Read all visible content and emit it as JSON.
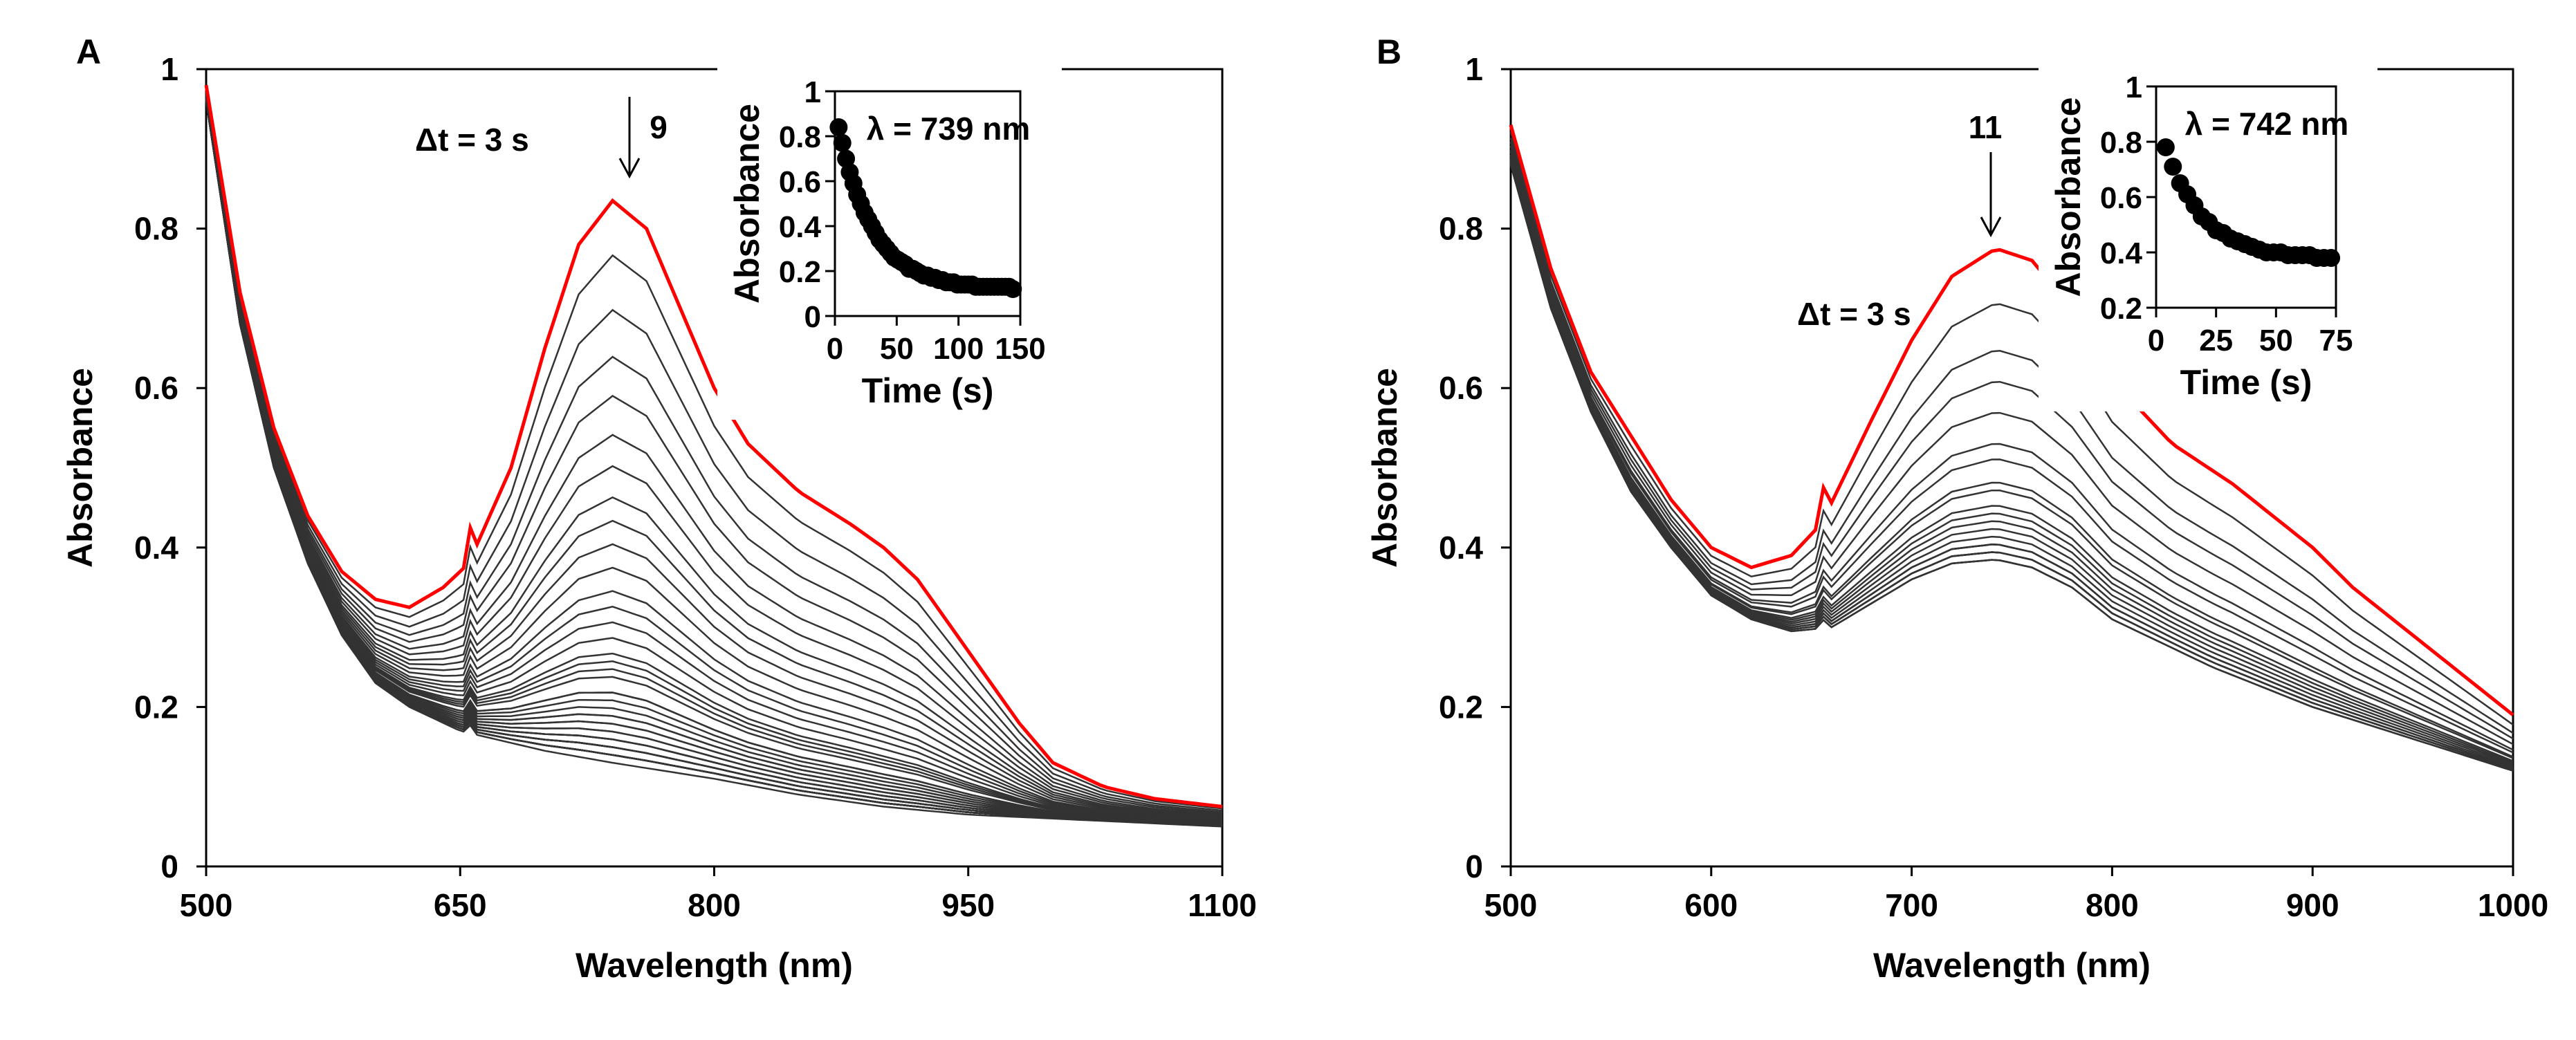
{
  "chart_data": [
    {
      "panel": "A",
      "type": "line",
      "xlabel": "Wavelength (nm)",
      "ylabel": "Absorbance",
      "xlim": [
        500,
        1100
      ],
      "ylim": [
        0,
        1
      ],
      "xticks": [
        "500",
        "650",
        "800",
        "950",
        "1100"
      ],
      "yticks": [
        "0",
        "0.2",
        "0.4",
        "0.6",
        "0.8",
        "1"
      ],
      "annotation_dt": "Δt = 3 s",
      "annotation_count": "9",
      "initial_color": "#ff0000",
      "trace_color": "#333333",
      "initial_spectrum": {
        "x": [
          500,
          520,
          540,
          560,
          580,
          600,
          620,
          640,
          655,
          680,
          700,
          720,
          740,
          760,
          780,
          800,
          820,
          850,
          880,
          900,
          920,
          950,
          980,
          1000,
          1030,
          1060,
          1100
        ],
        "y": [
          0.98,
          0.72,
          0.55,
          0.44,
          0.37,
          0.335,
          0.325,
          0.35,
          0.38,
          0.5,
          0.65,
          0.78,
          0.835,
          0.8,
          0.7,
          0.6,
          0.53,
          0.47,
          0.43,
          0.4,
          0.36,
          0.27,
          0.18,
          0.13,
          0.1,
          0.085,
          0.075
        ]
      },
      "final_spectrum": {
        "x": [
          500,
          520,
          540,
          560,
          580,
          600,
          620,
          650,
          700,
          740,
          800,
          850,
          900,
          950,
          1000,
          1100
        ],
        "y": [
          0.96,
          0.68,
          0.5,
          0.38,
          0.29,
          0.23,
          0.2,
          0.17,
          0.145,
          0.13,
          0.11,
          0.09,
          0.075,
          0.065,
          0.06,
          0.05
        ]
      },
      "inset": {
        "type": "scatter",
        "label": "λ = 739 nm",
        "xlabel": "Time (s)",
        "ylabel": "Absorbance",
        "xlim": [
          0,
          150
        ],
        "ylim": [
          0,
          1
        ],
        "xticks": [
          "0",
          "50",
          "100",
          "150"
        ],
        "yticks": [
          "0",
          "0.2",
          "0.4",
          "0.6",
          "0.8",
          "1"
        ],
        "x_start": 3,
        "x_step": 3,
        "y": [
          0.84,
          0.77,
          0.7,
          0.64,
          0.59,
          0.54,
          0.5,
          0.46,
          0.43,
          0.4,
          0.37,
          0.34,
          0.32,
          0.3,
          0.28,
          0.26,
          0.25,
          0.24,
          0.23,
          0.21,
          0.21,
          0.2,
          0.19,
          0.18,
          0.18,
          0.17,
          0.17,
          0.16,
          0.16,
          0.15,
          0.15,
          0.15,
          0.14,
          0.14,
          0.14,
          0.14,
          0.14,
          0.13,
          0.13,
          0.13,
          0.13,
          0.13,
          0.13,
          0.13,
          0.13,
          0.13,
          0.13,
          0.12
        ]
      }
    },
    {
      "panel": "B",
      "type": "line",
      "xlabel": "Wavelength (nm)",
      "ylabel": "Absorbance",
      "xlim": [
        500,
        1000
      ],
      "ylim": [
        0,
        1
      ],
      "xticks": [
        "500",
        "600",
        "700",
        "800",
        "900",
        "1000"
      ],
      "yticks": [
        "0",
        "0.2",
        "0.4",
        "0.6",
        "0.8",
        "1"
      ],
      "annotation_dt": "Δt = 3 s",
      "annotation_count": "11",
      "initial_color": "#ff0000",
      "trace_color": "#333333",
      "initial_spectrum": {
        "x": [
          500,
          520,
          540,
          560,
          580,
          600,
          620,
          640,
          655,
          680,
          700,
          720,
          742,
          760,
          780,
          800,
          830,
          860,
          900,
          920,
          950,
          1000
        ],
        "y": [
          0.93,
          0.75,
          0.62,
          0.54,
          0.46,
          0.4,
          0.375,
          0.39,
          0.43,
          0.56,
          0.66,
          0.74,
          0.775,
          0.76,
          0.7,
          0.61,
          0.53,
          0.48,
          0.4,
          0.35,
          0.29,
          0.19
        ]
      },
      "final_spectrum": {
        "x": [
          500,
          520,
          540,
          560,
          580,
          600,
          620,
          640,
          660,
          680,
          700,
          720,
          742,
          760,
          780,
          800,
          850,
          900,
          950,
          1000
        ],
        "y": [
          0.88,
          0.7,
          0.57,
          0.47,
          0.4,
          0.34,
          0.31,
          0.295,
          0.3,
          0.33,
          0.36,
          0.38,
          0.385,
          0.375,
          0.35,
          0.31,
          0.25,
          0.2,
          0.16,
          0.12
        ]
      },
      "inset": {
        "type": "scatter",
        "label": "λ = 742 nm",
        "xlabel": "Time (s)",
        "ylabel": "Absorbance",
        "xlim": [
          0,
          75
        ],
        "ylim": [
          0.2,
          1
        ],
        "xticks": [
          "0",
          "25",
          "50",
          "75"
        ],
        "yticks": [
          "0.2",
          "0.4",
          "0.6",
          "0.8",
          "1"
        ],
        "x_start": 4,
        "x_step": 3,
        "y": [
          0.78,
          0.71,
          0.65,
          0.61,
          0.57,
          0.53,
          0.51,
          0.48,
          0.47,
          0.45,
          0.44,
          0.43,
          0.42,
          0.41,
          0.4,
          0.4,
          0.4,
          0.39,
          0.39,
          0.39,
          0.39,
          0.38,
          0.38,
          0.38
        ]
      }
    }
  ]
}
